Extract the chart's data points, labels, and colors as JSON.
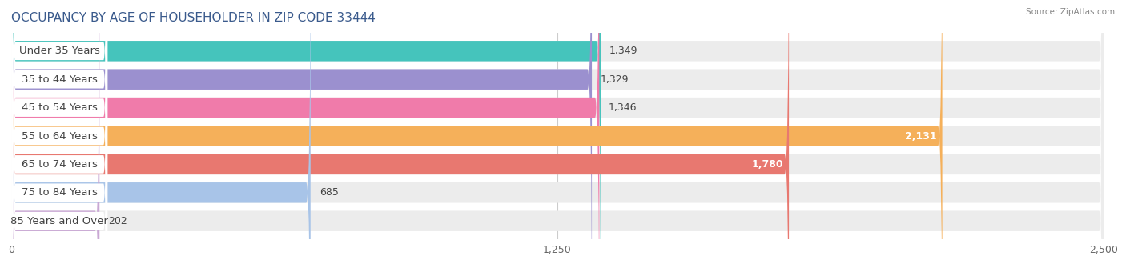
{
  "title": "OCCUPANCY BY AGE OF HOUSEHOLDER IN ZIP CODE 33444",
  "source": "Source: ZipAtlas.com",
  "categories": [
    "Under 35 Years",
    "35 to 44 Years",
    "45 to 54 Years",
    "55 to 64 Years",
    "65 to 74 Years",
    "75 to 84 Years",
    "85 Years and Over"
  ],
  "values": [
    1349,
    1329,
    1346,
    2131,
    1780,
    685,
    202
  ],
  "bar_colors": [
    "#45C4BC",
    "#9B90CF",
    "#F07BAA",
    "#F5B05A",
    "#E87870",
    "#A8C4E8",
    "#C9A8D4"
  ],
  "xlim": [
    0,
    2500
  ],
  "xticks": [
    0,
    1250,
    2500
  ],
  "xtick_labels": [
    "0",
    "1,250",
    "2,500"
  ],
  "bar_height": 0.72,
  "background_color": "#ffffff",
  "bar_bg_color": "#ececec",
  "label_fontsize": 9.5,
  "value_fontsize": 9,
  "title_fontsize": 11,
  "title_color": "#3a5a8c",
  "value_inside_threshold": 1700
}
